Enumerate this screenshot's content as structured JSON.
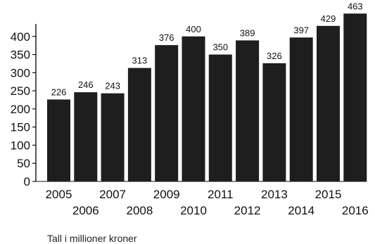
{
  "caption": "Tall i millioner kroner",
  "chart_data": {
    "type": "bar",
    "categories": [
      "2005",
      "2006",
      "2007",
      "2008",
      "2009",
      "2010",
      "2011",
      "2012",
      "2013",
      "2014",
      "2015",
      "2016"
    ],
    "values": [
      226,
      246,
      243,
      313,
      376,
      400,
      350,
      389,
      326,
      397,
      429,
      463
    ],
    "data_labels": [
      "226",
      "246",
      "243",
      "313",
      "376",
      "400",
      "350",
      "389",
      "326",
      "397",
      "429",
      "463"
    ],
    "yticks": [
      "0",
      "50",
      "100",
      "150",
      "200",
      "250",
      "300",
      "350",
      "400"
    ],
    "ylim": [
      0,
      450
    ],
    "title": "",
    "xlabel": "",
    "ylabel": "",
    "grid": false,
    "bar_color": "#1e1e1e",
    "axis_color": "#111111",
    "text_color": "#111111"
  }
}
